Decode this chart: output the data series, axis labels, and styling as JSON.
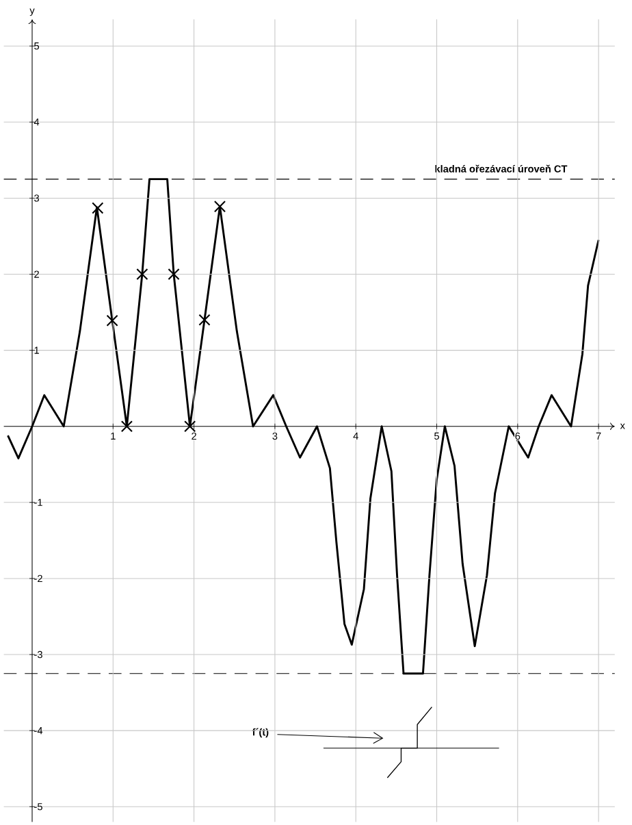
{
  "chart_data": {
    "type": "line",
    "xlabel": "x",
    "ylabel": "y",
    "xlim": [
      -0.35,
      7.2
    ],
    "ylim": [
      -5.2,
      5.35
    ],
    "xticks": [
      1,
      2,
      3,
      4,
      5,
      6,
      7
    ],
    "yticks": [
      -5,
      -4,
      -3,
      -2,
      -1,
      1,
      2,
      3,
      4,
      5
    ],
    "grid": true,
    "series": [
      {
        "color": "#000000",
        "marker": "none",
        "x": [
          -0.3,
          -0.17,
          0,
          0.15,
          0.39,
          0.59,
          0.8,
          0.99,
          1.17,
          1.36,
          1.45,
          1.67,
          1.75,
          1.95,
          2.13,
          2.32,
          2.53,
          2.73,
          2.98,
          3.14,
          3.31,
          3.52,
          3.68,
          3.76,
          3.86,
          3.95,
          4.1,
          4.18,
          4.32,
          4.44,
          4.51,
          4.59,
          4.83,
          4.91,
          5.0,
          5.1,
          5.22,
          5.32,
          5.47,
          5.62,
          5.72,
          5.89,
          6.13,
          6.26,
          6.42,
          6.66,
          6.8,
          6.87,
          7.0
        ],
        "values": [
          -0.12,
          -0.42,
          0,
          0.41,
          0,
          1.25,
          2.88,
          1.39,
          0,
          2.0,
          3.25,
          3.25,
          2.0,
          0,
          1.4,
          2.89,
          1.25,
          0,
          0.41,
          0,
          -0.41,
          0,
          -0.55,
          -1.52,
          -2.6,
          -2.87,
          -2.14,
          -0.95,
          0,
          -0.59,
          -1.96,
          -3.25,
          -3.25,
          -1.96,
          -0.7,
          0,
          -0.52,
          -1.81,
          -2.89,
          -1.96,
          -0.88,
          0,
          -0.41,
          0,
          0.41,
          0,
          0.95,
          1.85,
          2.45
        ]
      },
      {
        "type": "scatter",
        "color": "#000000",
        "marker": "cross",
        "x": [
          0.81,
          0.99,
          1.17,
          1.36,
          1.75,
          1.95,
          2.13,
          2.32
        ],
        "values": [
          2.87,
          1.39,
          0,
          2.0,
          2.0,
          0,
          1.4,
          2.89
        ]
      }
    ],
    "ref_lines": [
      {
        "axis": "y",
        "value": 3.25,
        "label": "kladná ořezávací úroveň  CT",
        "line_style": "dashed",
        "color": "#000000"
      },
      {
        "axis": "y",
        "value": -3.25,
        "line_style": "dashed",
        "color": "#000000"
      }
    ],
    "annotations": [
      "f´(t)"
    ]
  }
}
